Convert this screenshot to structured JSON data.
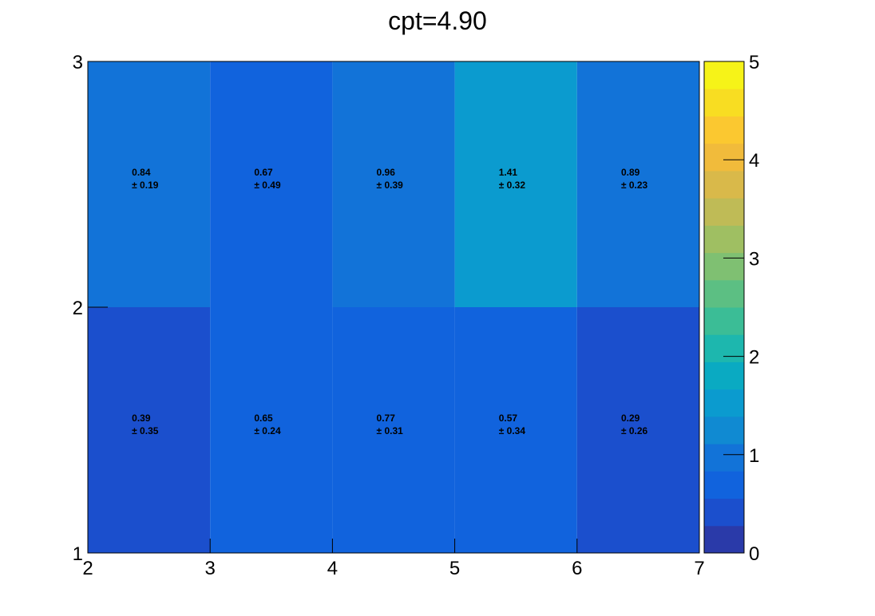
{
  "chart_data": {
    "type": "heatmap",
    "title": "cpt=4.90",
    "xlabel": "",
    "ylabel": "",
    "x_edges": [
      2,
      3,
      4,
      5,
      6,
      7
    ],
    "y_edges": [
      1,
      2,
      3
    ],
    "xlim": [
      2,
      7
    ],
    "ylim": [
      1,
      3
    ],
    "x_ticks": [
      "2",
      "3",
      "4",
      "5",
      "6",
      "7"
    ],
    "y_ticks": [
      "1",
      "2",
      "3"
    ],
    "rows": [
      {
        "y_range": [
          1,
          2
        ],
        "cells": [
          {
            "value": 0.39,
            "error": 0.35,
            "text": "0.39",
            "err_text": "± 0.35"
          },
          {
            "value": 0.65,
            "error": 0.24,
            "text": "0.65",
            "err_text": "± 0.24"
          },
          {
            "value": 0.77,
            "error": 0.31,
            "text": "0.77",
            "err_text": "± 0.31"
          },
          {
            "value": 0.57,
            "error": 0.34,
            "text": "0.57",
            "err_text": "± 0.34"
          },
          {
            "value": 0.29,
            "error": 0.26,
            "text": "0.29",
            "err_text": "± 0.26"
          }
        ]
      },
      {
        "y_range": [
          2,
          3
        ],
        "cells": [
          {
            "value": 0.84,
            "error": 0.19,
            "text": "0.84",
            "err_text": "± 0.19"
          },
          {
            "value": 0.67,
            "error": 0.49,
            "text": "0.67",
            "err_text": "± 0.49"
          },
          {
            "value": 0.96,
            "error": 0.39,
            "text": "0.96",
            "err_text": "± 0.39"
          },
          {
            "value": 1.41,
            "error": 0.32,
            "text": "1.41",
            "err_text": "± 0.32"
          },
          {
            "value": 0.89,
            "error": 0.23,
            "text": "0.89",
            "err_text": "± 0.23"
          }
        ]
      }
    ],
    "colorbar": {
      "range": [
        0,
        5
      ],
      "ticks": [
        "0",
        "1",
        "2",
        "3",
        "4",
        "5"
      ],
      "colors": [
        "#2a3aa9",
        "#1b4fcd",
        "#1163dd",
        "#1273d8",
        "#108ad2",
        "#0b9bcf",
        "#0aaac2",
        "#1db7ae",
        "#3bbd96",
        "#5cbf83",
        "#7fc072",
        "#9fbf62",
        "#bfbb56",
        "#d9b94a",
        "#f1bb3b",
        "#fbc830",
        "#f8dd22",
        "#f6f318"
      ]
    },
    "grid": false,
    "legend": "none"
  }
}
